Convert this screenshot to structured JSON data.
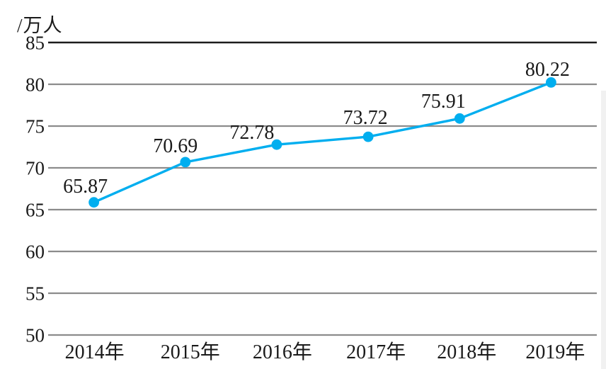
{
  "chart_data": {
    "type": "line",
    "title": "",
    "ylabel": "/万人",
    "xlabel": "",
    "categories": [
      "2014年",
      "2015年",
      "2016年",
      "2017年",
      "2018年",
      "2019年"
    ],
    "values": [
      65.87,
      70.69,
      72.78,
      73.72,
      75.91,
      80.22
    ],
    "data_labels": [
      "65.87",
      "70.69",
      "72.78",
      "73.72",
      "75.91",
      "80.22"
    ],
    "ylim": [
      50,
      85
    ],
    "yticks": [
      50,
      55,
      60,
      65,
      70,
      75,
      80,
      85
    ],
    "grid": true,
    "legend": "none",
    "colors": {
      "line": "#00AEEF",
      "marker": "#00AEEF",
      "grid": "#8c8c8c",
      "grid_top": "#1c1c1c",
      "text": "#1a1a1a"
    }
  }
}
